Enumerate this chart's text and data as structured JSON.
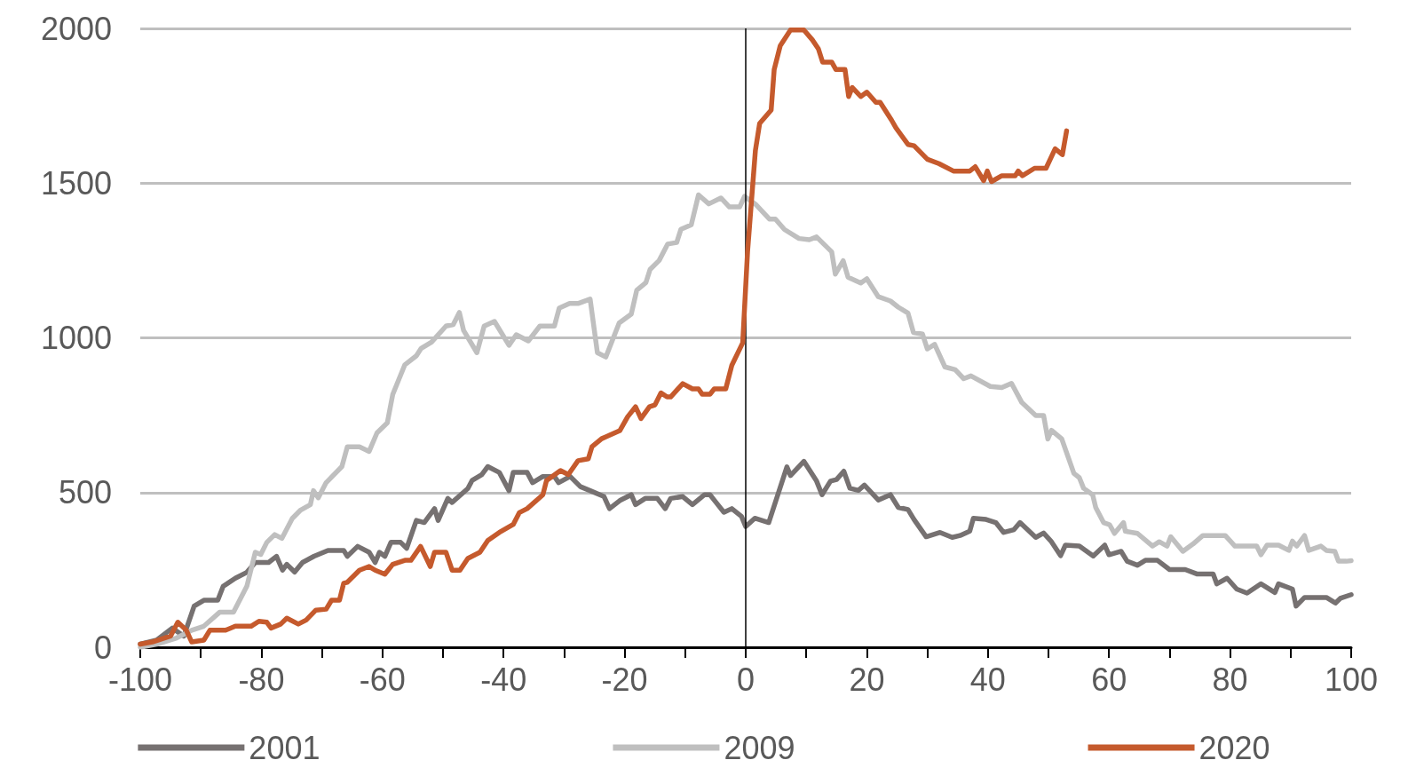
{
  "chart_data": {
    "type": "line",
    "xlim": [
      -100,
      100
    ],
    "xticks": [
      -100,
      {
        "value": -90,
        "label": null
      },
      -80,
      {
        "value": -70,
        "label": null
      },
      -60,
      {
        "value": -50,
        "label": null
      },
      -40,
      {
        "value": -30,
        "label": null
      },
      -20,
      {
        "value": -10,
        "label": null
      },
      0,
      {
        "value": 10,
        "label": null
      },
      20,
      {
        "value": 30,
        "label": null
      },
      40,
      {
        "value": 50,
        "label": null
      },
      60,
      {
        "value": 70,
        "label": null
      },
      80,
      {
        "value": 90,
        "label": null
      },
      100
    ],
    "ylim": [
      0,
      2000
    ],
    "yticks": [
      0,
      500,
      1000,
      1500,
      2000
    ],
    "grid": "y",
    "legend": "bottom",
    "marker": "none",
    "line_style": "solid",
    "ref_lines": [
      {
        "axis": "x",
        "value": 0,
        "color": "#000000"
      }
    ],
    "series": [
      {
        "name": "2001",
        "color": "#767171",
        "x": [
          -100,
          -97.3,
          -94.7,
          -92.8,
          -91.1,
          -89.5,
          -87.2,
          -86.3,
          -84.3,
          -82.4,
          -81,
          -78.8,
          -77.5,
          -76.5,
          -75.8,
          -74.5,
          -73.2,
          -71.3,
          -69,
          -66.4,
          -65.8,
          -64.1,
          -62.2,
          -61.2,
          -60.5,
          -59.6,
          -58.6,
          -57,
          -56,
          -54.4,
          -53.1,
          -51.4,
          -50.8,
          -49.2,
          -48.5,
          -45.9,
          -45.2,
          -43.6,
          -42.6,
          -40.7,
          -39.1,
          -38.4,
          -36.1,
          -35.2,
          -33.5,
          -31.6,
          -30.9,
          -29,
          -27.3,
          -25.7,
          -23.4,
          -22.5,
          -20.8,
          -18.9,
          -18.2,
          -16.6,
          -14.6,
          -13.3,
          -12.4,
          -10.4,
          -8.8,
          -6.8,
          -5.9,
          -4.9,
          -3.6,
          -2.3,
          -0.7,
          0,
          1.5,
          3.8,
          6.8,
          7.4,
          9.6,
          11.7,
          12.6,
          14,
          15,
          16.2,
          17.2,
          18.6,
          19.6,
          21.9,
          23.9,
          25.2,
          26.8,
          27.8,
          29.8,
          32.1,
          34.1,
          35.4,
          37,
          37.6,
          39.7,
          41.3,
          42.6,
          44.3,
          45.3,
          47.9,
          49.2,
          50.5,
          52,
          52.8,
          55.1,
          57.4,
          59.3,
          60,
          62,
          63,
          64.7,
          66,
          68,
          70,
          72.6,
          74.5,
          77.2,
          77.8,
          79.5,
          81.1,
          82.8,
          85.1,
          87.4,
          88,
          90.3,
          90.9,
          92.3,
          95.9,
          97.4,
          98.2,
          100
        ],
        "values": [
          10,
          23,
          62,
          36,
          133,
          152,
          152,
          197,
          223,
          242,
          274,
          274,
          294,
          249,
          268,
          243,
          274,
          294,
          313,
          313,
          294,
          326,
          307,
          274,
          307,
          294,
          339,
          339,
          320,
          410,
          403,
          448,
          410,
          481,
          468,
          513,
          539,
          558,
          584,
          565,
          506,
          565,
          565,
          532,
          552,
          552,
          532,
          552,
          519,
          506,
          487,
          448,
          474,
          493,
          461,
          481,
          481,
          448,
          481,
          487,
          461,
          493,
          493,
          468,
          436,
          448,
          423,
          390,
          417,
          403,
          583,
          555,
          601,
          537,
          493,
          537,
          542,
          569,
          514,
          507,
          524,
          476,
          493,
          452,
          445,
          413,
          357,
          371,
          355,
          361,
          375,
          417,
          413,
          403,
          371,
          380,
          403,
          355,
          369,
          341,
          296,
          330,
          327,
          295,
          330,
          299,
          310,
          278,
          265,
          281,
          281,
          251,
          251,
          237,
          237,
          205,
          223,
          188,
          175,
          205,
          177,
          205,
          188,
          133,
          161,
          161,
          143,
          158,
          170
        ]
      },
      {
        "name": "2009",
        "color": "#bfbfbf",
        "x": [
          -100,
          -97.3,
          -94,
          -91.5,
          -89.5,
          -86.9,
          -84.6,
          -82.4,
          -81,
          -80.1,
          -79.1,
          -77.8,
          -76.6,
          -74.9,
          -73.6,
          -71.9,
          -71.4,
          -70.6,
          -69.3,
          -66.7,
          -65.8,
          -63.8,
          -62.2,
          -60.9,
          -59.2,
          -58.3,
          -56.3,
          -54.4,
          -53.6,
          -51.9,
          -49.5,
          -48.3,
          -47.3,
          -46.6,
          -44.4,
          -43.2,
          -41.5,
          -39.1,
          -37.9,
          -35.9,
          -34,
          -31.6,
          -30.8,
          -29.1,
          -27.7,
          -25.7,
          -24.5,
          -23.1,
          -20.9,
          -18.9,
          -18,
          -16.5,
          -15.8,
          -14.3,
          -12.9,
          -11.4,
          -10.7,
          -9,
          -7.8,
          -6.1,
          -4.1,
          -2.7,
          -1,
          -0.2,
          1.6,
          3.9,
          4.9,
          6.4,
          8.8,
          10.5,
          11.7,
          14.2,
          14.8,
          16.1,
          16.9,
          19,
          20,
          21.9,
          23.9,
          25.2,
          26.8,
          27.7,
          29.2,
          30,
          31.2,
          32.9,
          34.6,
          36,
          37.2,
          40.4,
          42.3,
          43.9,
          45.6,
          47.9,
          49.2,
          49.9,
          50.5,
          52.2,
          54.2,
          55.1,
          55.8,
          57.3,
          57.8,
          59.1,
          60.1,
          60.9,
          62.4,
          62.7,
          64.7,
          67.2,
          68.3,
          69.6,
          70.2,
          72.2,
          73.9,
          75.5,
          79.2,
          80.8,
          84.4,
          85.1,
          86.1,
          88,
          89.7,
          90.3,
          91,
          92.3,
          93,
          95,
          95.9,
          97.3,
          97.9,
          99.2,
          100
        ],
        "values": [
          0,
          10,
          30,
          55,
          68,
          113,
          113,
          197,
          307,
          300,
          339,
          364,
          352,
          416,
          442,
          461,
          506,
          483,
          532,
          584,
          648,
          648,
          633,
          693,
          725,
          817,
          913,
          942,
          966,
          986,
          1038,
          1043,
          1082,
          1024,
          952,
          1038,
          1053,
          976,
          1010,
          990,
          1038,
          1038,
          1096,
          1111,
          1111,
          1125,
          952,
          938,
          1048,
          1077,
          1154,
          1178,
          1221,
          1250,
          1303,
          1308,
          1351,
          1365,
          1462,
          1433,
          1452,
          1423,
          1423,
          1457,
          1432,
          1384,
          1384,
          1350,
          1321,
          1317,
          1326,
          1278,
          1206,
          1249,
          1196,
          1177,
          1191,
          1133,
          1119,
          1099,
          1080,
          1017,
          1012,
          964,
          979,
          906,
          897,
          868,
          877,
          843,
          839,
          853,
          791,
          749,
          749,
          673,
          701,
          673,
          562,
          548,
          514,
          493,
          452,
          403,
          396,
          368,
          403,
          375,
          368,
          327,
          341,
          327,
          357,
          310,
          334,
          361,
          361,
          327,
          327,
          299,
          330,
          330,
          313,
          343,
          327,
          361,
          313,
          327,
          313,
          310,
          278,
          278,
          280
        ]
      },
      {
        "name": "2020",
        "color": "#c55a2d",
        "x": [
          -100,
          -98,
          -95,
          -93.8,
          -92.4,
          -91.5,
          -89.5,
          -88.5,
          -85.9,
          -84.3,
          -81.7,
          -80.4,
          -79.1,
          -78.4,
          -76.8,
          -75.8,
          -73.9,
          -72.6,
          -71,
          -69.3,
          -68.4,
          -67.1,
          -66.4,
          -65.8,
          -63.8,
          -62.2,
          -61.2,
          -59.6,
          -58.3,
          -56.3,
          -55.3,
          -53.7,
          -52.1,
          -51.4,
          -49.5,
          -48.5,
          -47.2,
          -45.9,
          -43.9,
          -42.6,
          -40.7,
          -38.4,
          -37.4,
          -36.1,
          -33.5,
          -32.9,
          -30.6,
          -29.3,
          -27.7,
          -26,
          -25.4,
          -23.8,
          -23.1,
          -20.8,
          -19.5,
          -18.2,
          -17.3,
          -15.9,
          -15,
          -14,
          -13,
          -12.4,
          -10.4,
          -8.8,
          -7.8,
          -7.2,
          -5.9,
          -5.2,
          -3.3,
          -2.3,
          -0.5,
          0.3,
          1.6,
          2.3,
          4.2,
          4.7,
          5.7,
          7.4,
          9.6,
          11,
          12,
          12.7,
          14.2,
          14.9,
          16.4,
          17,
          17.6,
          19,
          20,
          21.5,
          22.2,
          24.1,
          24.8,
          26.8,
          27.8,
          30,
          31.9,
          34.3,
          37,
          37.9,
          39.3,
          39.9,
          40.6,
          42.3,
          44.5,
          45,
          45.7,
          47.7,
          49.6,
          51.1,
          52.3,
          53
        ],
        "values": [
          10,
          17,
          36,
          81,
          55,
          17,
          23,
          55,
          55,
          68,
          68,
          84,
          81,
          62,
          75,
          94,
          75,
          88,
          120,
          123,
          152,
          152,
          207,
          210,
          249,
          261,
          249,
          236,
          268,
          281,
          281,
          326,
          261,
          307,
          307,
          249,
          249,
          287,
          307,
          345,
          371,
          397,
          435,
          448,
          493,
          539,
          571,
          558,
          603,
          609,
          648,
          674,
          680,
          700,
          745,
          777,
          739,
          777,
          783,
          822,
          809,
          809,
          852,
          835,
          835,
          818,
          818,
          835,
          835,
          911,
          984,
          1278,
          1606,
          1693,
          1736,
          1867,
          1944,
          1995,
          1995,
          1963,
          1934,
          1891,
          1891,
          1867,
          1867,
          1780,
          1809,
          1780,
          1794,
          1761,
          1761,
          1703,
          1679,
          1625,
          1621,
          1577,
          1563,
          1539,
          1539,
          1553,
          1508,
          1539,
          1505,
          1524,
          1524,
          1539,
          1524,
          1548,
          1548,
          1611,
          1592,
          1669
        ]
      }
    ]
  }
}
